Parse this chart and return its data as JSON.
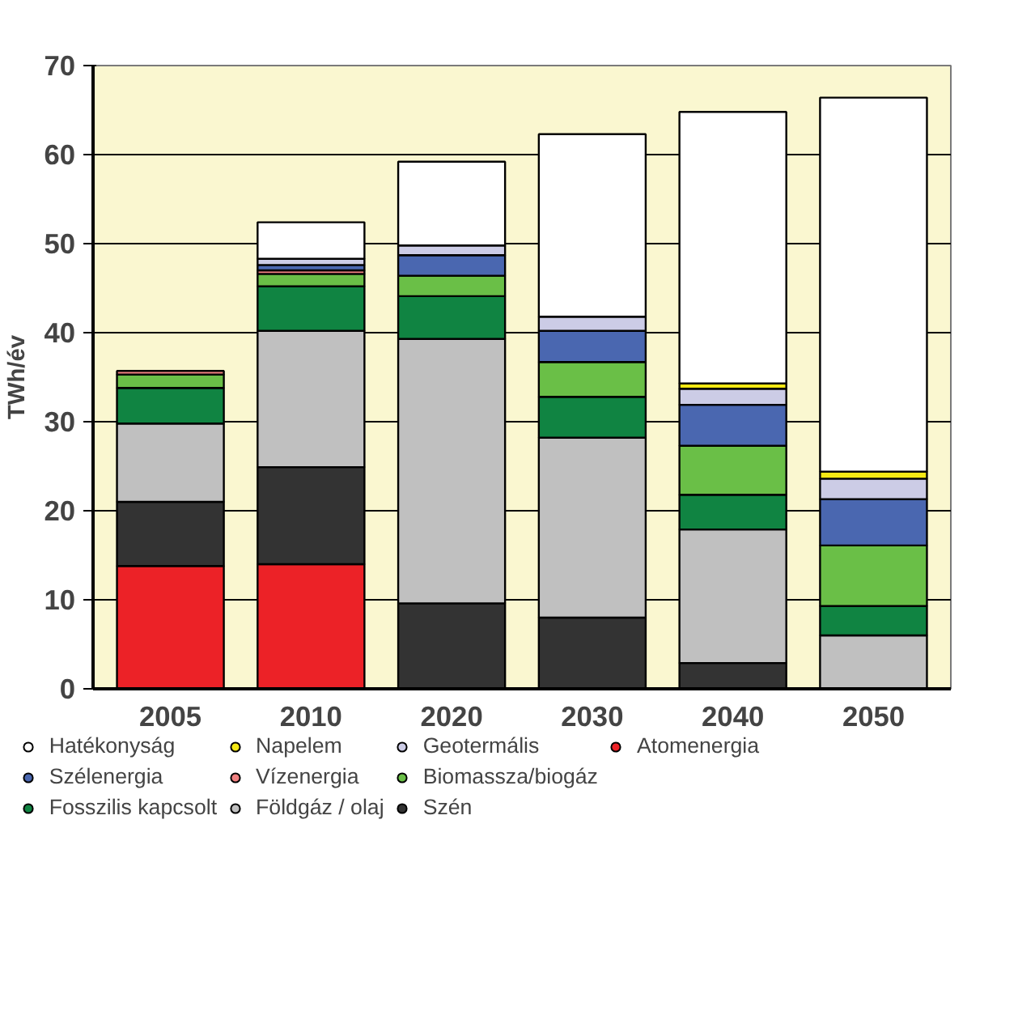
{
  "chart_data": {
    "type": "bar",
    "stacked": true,
    "ylabel": "TWh/év",
    "categories": [
      "2005",
      "2010",
      "2020",
      "2030",
      "2040",
      "2050"
    ],
    "ylim": [
      0,
      70
    ],
    "yticks": [
      0,
      10,
      20,
      30,
      40,
      50,
      60,
      70
    ],
    "grid": "y",
    "legend": "bottom",
    "series": [
      {
        "name": "Atomenergia",
        "color": "#ec2227",
        "values": [
          13.8,
          14.0,
          null,
          null,
          null,
          null
        ]
      },
      {
        "name": "Szén",
        "color": "#333333",
        "values": [
          7.2,
          10.9,
          9.6,
          8.0,
          2.9,
          null
        ]
      },
      {
        "name": "Földgáz / olaj",
        "color": "#c0c0c0",
        "values": [
          8.8,
          15.3,
          29.7,
          20.2,
          15.0,
          6.0
        ]
      },
      {
        "name": "Fosszilis kapcsolt",
        "color": "#108442",
        "values": [
          4.0,
          5.0,
          4.8,
          4.6,
          3.9,
          3.3
        ]
      },
      {
        "name": "Biomassza/biogáz",
        "color": "#6abf47",
        "values": [
          1.5,
          1.4,
          2.3,
          3.9,
          5.5,
          6.8
        ]
      },
      {
        "name": "Vízenergia",
        "color": "#f08080",
        "values": [
          0.4,
          0.4,
          null,
          null,
          null,
          null
        ]
      },
      {
        "name": "Szélenergia",
        "color": "#4a67b0",
        "values": [
          null,
          0.6,
          2.3,
          3.5,
          4.6,
          5.2
        ]
      },
      {
        "name": "Geotermális",
        "color": "#cccce6",
        "values": [
          null,
          0.7,
          1.1,
          1.6,
          1.8,
          2.3
        ]
      },
      {
        "name": "Napelem",
        "color": "#f5e914",
        "values": [
          null,
          null,
          null,
          null,
          0.6,
          0.8
        ]
      },
      {
        "name": "Hatékonyság",
        "color": "#ffffff",
        "values": [
          null,
          4.1,
          9.4,
          20.5,
          30.5,
          42.0
        ]
      }
    ]
  }
}
